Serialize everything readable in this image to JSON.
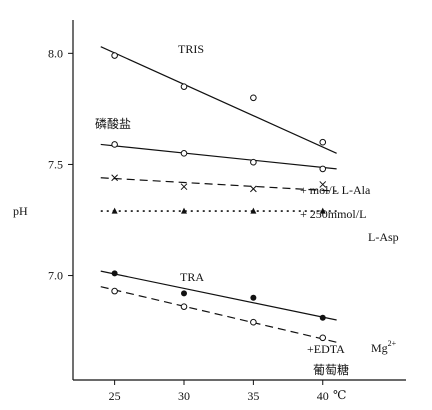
{
  "chart_data": {
    "type": "scatter",
    "title": "",
    "xlabel": "℃",
    "ylabel": "pH",
    "xlim": [
      22,
      46
    ],
    "ylim": [
      6.53,
      8.15
    ],
    "x_ticks": [
      25,
      30,
      35,
      40
    ],
    "y_ticks": [
      7.0,
      7.5,
      8.0
    ],
    "y_tick_labels": [
      "7.0",
      "7.5",
      "8.0"
    ],
    "grid": false,
    "legend": "none",
    "series": [
      {
        "name": "TRIS",
        "marker": "circle-open",
        "line_style": "solid",
        "points": [
          {
            "x": 25,
            "y": 7.99
          },
          {
            "x": 30,
            "y": 7.85
          },
          {
            "x": 35,
            "y": 7.8
          },
          {
            "x": 40,
            "y": 7.6
          }
        ],
        "fit": [
          [
            24,
            8.03
          ],
          [
            41,
            7.55
          ]
        ]
      },
      {
        "name": "磷酸盐",
        "marker": "circle-open",
        "line_style": "solid",
        "points": [
          {
            "x": 25,
            "y": 7.59
          },
          {
            "x": 30,
            "y": 7.55
          },
          {
            "x": 35,
            "y": 7.51
          },
          {
            "x": 40,
            "y": 7.48
          }
        ],
        "fit": [
          [
            24,
            7.59
          ],
          [
            41,
            7.48
          ]
        ]
      },
      {
        "name": "+ mol/L L-Ala",
        "marker": "x",
        "line_style": "dashed",
        "points": [
          {
            "x": 25,
            "y": 7.44
          },
          {
            "x": 30,
            "y": 7.4
          },
          {
            "x": 35,
            "y": 7.39
          },
          {
            "x": 40,
            "y": 7.41
          }
        ],
        "fit": [
          [
            24,
            7.44
          ],
          [
            41,
            7.38
          ]
        ]
      },
      {
        "name": "+ 250mmol/L L-Asp",
        "marker": "triangle-filled",
        "line_style": "dotted",
        "points": [
          {
            "x": 25,
            "y": 7.29
          },
          {
            "x": 30,
            "y": 7.29
          },
          {
            "x": 35,
            "y": 7.29
          },
          {
            "x": 40,
            "y": 7.29
          }
        ],
        "fit": [
          [
            24,
            7.29
          ],
          [
            41,
            7.29
          ]
        ]
      },
      {
        "name": "TRA",
        "marker": "circle-filled",
        "line_style": "solid",
        "points": [
          {
            "x": 25,
            "y": 7.01
          },
          {
            "x": 30,
            "y": 6.92
          },
          {
            "x": 35,
            "y": 6.9
          },
          {
            "x": 40,
            "y": 6.81
          }
        ],
        "fit": [
          [
            24,
            7.02
          ],
          [
            41,
            6.8
          ]
        ]
      },
      {
        "name": "+EDTA 葡萄糖",
        "marker": "circle-open",
        "line_style": "dashed",
        "points": [
          {
            "x": 25,
            "y": 6.93
          },
          {
            "x": 30,
            "y": 6.86
          },
          {
            "x": 35,
            "y": 6.79
          },
          {
            "x": 40,
            "y": 6.72
          }
        ],
        "fit": [
          [
            24,
            6.95
          ],
          [
            41,
            6.7
          ]
        ]
      }
    ],
    "annotations": {
      "tris": "TRIS",
      "phosphate": "磷酸盐",
      "ala": "+ mol/L L-Ala",
      "asp_line1": "+ 250mmol/L",
      "asp_line2": "L-Asp",
      "tra": "TRA",
      "edta": "+EDTA",
      "glucose": "葡萄糖",
      "mg": "Mg",
      "mg_sup": "2+"
    }
  }
}
